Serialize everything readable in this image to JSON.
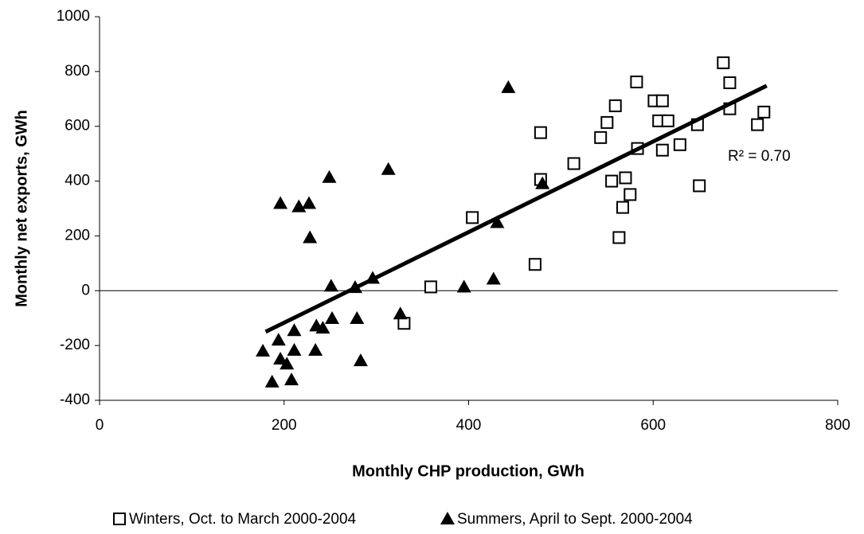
{
  "chart_data": {
    "type": "scatter",
    "xlabel": "Monthly CHP production, GWh",
    "ylabel": "Monthly net exports, GWh",
    "xlim": [
      0,
      800
    ],
    "xticks": [
      0,
      200,
      400,
      600,
      800
    ],
    "ylim": [
      -400,
      1000
    ],
    "yticks": [
      -400,
      -200,
      0,
      200,
      400,
      600,
      800,
      1000
    ],
    "series": [
      {
        "name": "Winters, Oct. to March 2000-2004",
        "color": "#000000",
        "marker": "square",
        "x": [
          359,
          330,
          404,
          472,
          478,
          478,
          514,
          543,
          550,
          559,
          555,
          570,
          575,
          567,
          563,
          582,
          583,
          601,
          610,
          606,
          616,
          610,
          629,
          648,
          650,
          676,
          683,
          683,
          713,
          720
        ],
        "values": [
          14,
          -119,
          267,
          96,
          577,
          406,
          464,
          559,
          614,
          675,
          400,
          412,
          351,
          304,
          194,
          762,
          519,
          693,
          693,
          620,
          620,
          513,
          533,
          606,
          383,
          832,
          759,
          664,
          606,
          652
        ]
      },
      {
        "name": "Summers, April to Sept. 2000-2004",
        "color": "#000000",
        "marker": "triangle",
        "x": [
          196,
          216,
          227,
          228,
          249,
          251,
          277,
          296,
          326,
          313,
          279,
          283,
          252,
          242,
          235,
          234,
          211,
          211,
          208,
          194,
          196,
          203,
          177,
          187,
          395,
          427,
          431,
          480,
          443
        ],
        "values": [
          319,
          307,
          319,
          194,
          414,
          17,
          12,
          46,
          -84,
          443,
          -101,
          -255,
          -101,
          -136,
          -128,
          -217,
          -145,
          -217,
          -325,
          -180,
          -249,
          -267,
          -220,
          -333,
          14,
          43,
          249,
          391,
          742
        ]
      }
    ],
    "trendline": {
      "x": [
        180,
        723
      ],
      "values": [
        -150,
        748
      ],
      "color": "#000000"
    },
    "annotation": "R² = 0.70"
  }
}
